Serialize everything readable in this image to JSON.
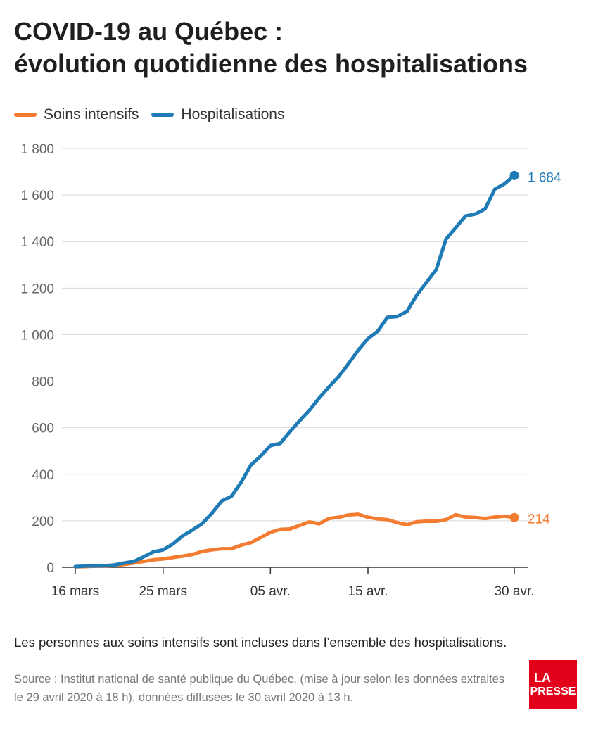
{
  "title": {
    "line1": "COVID-19 au Québec :",
    "line2": "évolution quotidienne des hospitalisations"
  },
  "colors": {
    "icu": "#f47c30",
    "hosp": "#1f7bb6"
  },
  "note": "Les personnes aux soins intensifs sont incluses dans l’ensemble des hospitalisations.",
  "source": "Source : Institut national de santé publique du Québec, (mise à jour selon les données extraites le 29 avril 2020 à 18 h), données diffusées le 30 avril 2020 à 13 h.",
  "logo": {
    "line1": "LA",
    "line2": "PRESSE"
  },
  "chart_data": {
    "type": "line",
    "x": [
      "2020-03-16",
      "2020-03-17",
      "2020-03-18",
      "2020-03-19",
      "2020-03-20",
      "2020-03-21",
      "2020-03-22",
      "2020-03-23",
      "2020-03-24",
      "2020-03-25",
      "2020-03-26",
      "2020-03-27",
      "2020-03-28",
      "2020-03-29",
      "2020-03-30",
      "2020-03-31",
      "2020-04-01",
      "2020-04-02",
      "2020-04-03",
      "2020-04-04",
      "2020-04-05",
      "2020-04-06",
      "2020-04-07",
      "2020-04-08",
      "2020-04-09",
      "2020-04-10",
      "2020-04-11",
      "2020-04-12",
      "2020-04-13",
      "2020-04-14",
      "2020-04-15",
      "2020-04-16",
      "2020-04-17",
      "2020-04-18",
      "2020-04-19",
      "2020-04-20",
      "2020-04-21",
      "2020-04-22",
      "2020-04-23",
      "2020-04-24",
      "2020-04-25",
      "2020-04-26",
      "2020-04-27",
      "2020-04-28",
      "2020-04-29",
      "2020-04-30"
    ],
    "series": [
      {
        "name": "Soins intensifs",
        "color": "#f47c30",
        "values": [
          2,
          3,
          5,
          6,
          8,
          12,
          18,
          25,
          32,
          36,
          42,
          48,
          55,
          68,
          75,
          80,
          80,
          95,
          106,
          128,
          150,
          163,
          165,
          180,
          195,
          187,
          210,
          215,
          225,
          228,
          215,
          208,
          205,
          192,
          183,
          196,
          198,
          198,
          205,
          226,
          216,
          214,
          210,
          216,
          220,
          214
        ]
      },
      {
        "name": "Hospitalisations",
        "color": "#1f7bb6",
        "values": [
          3,
          5,
          6,
          7,
          10,
          18,
          25,
          45,
          66,
          75,
          100,
          135,
          160,
          188,
          232,
          285,
          305,
          365,
          440,
          478,
          523,
          532,
          583,
          630,
          675,
          728,
          775,
          820,
          875,
          933,
          983,
          1015,
          1075,
          1078,
          1100,
          1170,
          1225,
          1280,
          1410,
          1460,
          1510,
          1518,
          1540,
          1625,
          1648,
          1684
        ]
      }
    ],
    "yticks": [
      "1 800",
      "1 600",
      "1 400",
      "1 200",
      "1 000",
      "800",
      "600",
      "400",
      "200",
      "0"
    ],
    "ytick_values": [
      1800,
      1600,
      1400,
      1200,
      1000,
      800,
      600,
      400,
      200,
      0
    ],
    "xticks": [
      {
        "label": "16 mars",
        "date": "2020-03-16"
      },
      {
        "label": "25 mars",
        "date": "2020-03-25"
      },
      {
        "label": "05 avr.",
        "date": "2020-04-05"
      },
      {
        "label": "15 avr.",
        "date": "2020-04-15"
      },
      {
        "label": "30 avr.",
        "date": "2020-04-30"
      }
    ],
    "end_labels": {
      "icu": "214",
      "hosp": "1 684"
    },
    "ylim": [
      0,
      1800
    ],
    "grid": true,
    "legend": "top-left"
  }
}
